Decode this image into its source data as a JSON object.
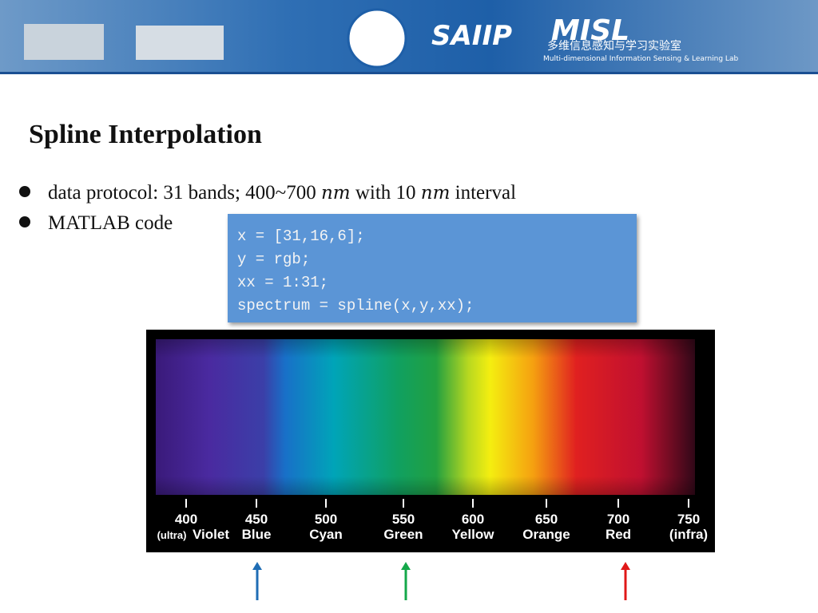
{
  "banner": {
    "lab_short": "SAIIP",
    "misl": "MISL",
    "misl_cn": "多维信息感知与学习实验室",
    "misl_en": "Multi-dimensional Information Sensing & Learning Lab"
  },
  "title": "Spline Interpolation",
  "bullets": [
    {
      "parts": [
        "data protocol: 31 bands; 400~700 ",
        "nm",
        " with 10 ",
        "nm",
        " interval"
      ]
    },
    {
      "parts": [
        "MATLAB code"
      ]
    }
  ],
  "code": {
    "lines": [
      "x = [31,16,6];",
      "y = rgb;",
      "xx = 1:31;",
      "spectrum = spline(x,y,xx);"
    ]
  },
  "spectrum": {
    "ticks": [
      {
        "nm": "400",
        "prefix": "(ultra)",
        "name": "Violet"
      },
      {
        "nm": "450",
        "name": "Blue"
      },
      {
        "nm": "500",
        "name": "Cyan"
      },
      {
        "nm": "550",
        "name": "Green"
      },
      {
        "nm": "600",
        "name": "Yellow"
      },
      {
        "nm": "650",
        "name": "Orange"
      },
      {
        "nm": "700",
        "name": "Red"
      },
      {
        "nm": "750",
        "name": "(infra)"
      }
    ]
  }
}
